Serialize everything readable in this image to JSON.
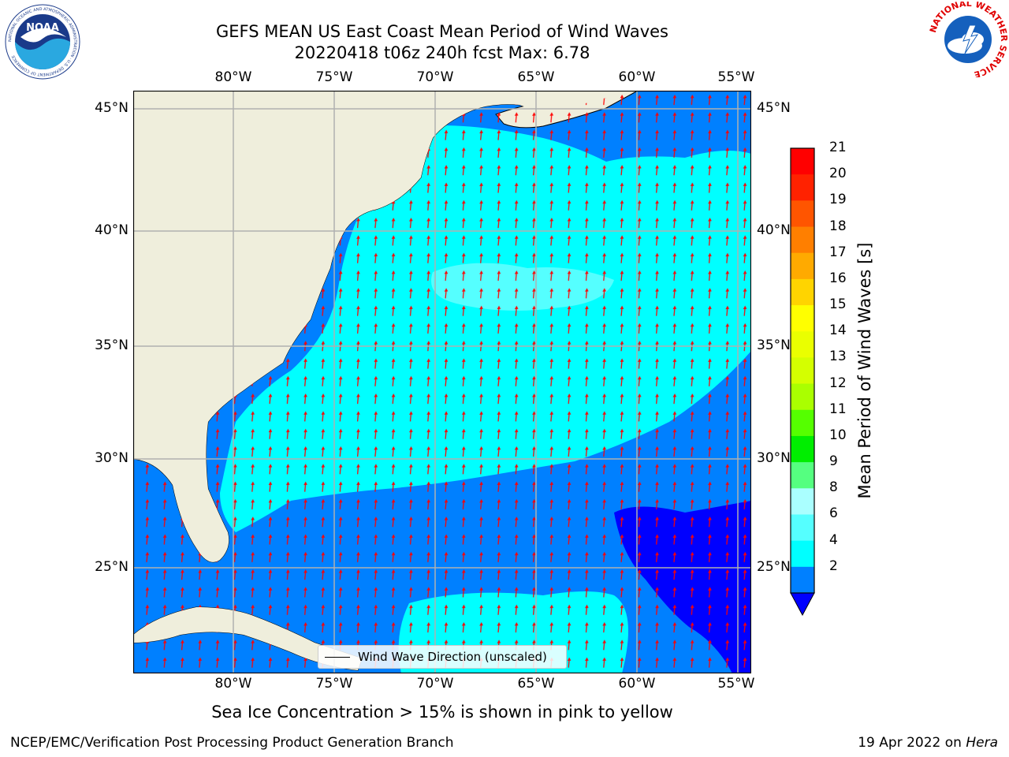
{
  "title_line1": "GEFS MEAN US East Coast Mean Period of Wind Waves",
  "title_line2": "20220418 t06z 240h fcst   Max: 6.78",
  "lon_ticks": [
    "80°W",
    "75°W",
    "70°W",
    "65°W",
    "60°W",
    "55°W"
  ],
  "lat_ticks": [
    "45°N",
    "40°N",
    "35°N",
    "30°N",
    "25°N"
  ],
  "colorbar": {
    "label": "Mean Period of Wind Waves [s]",
    "ticks": [
      "21",
      "20",
      "19",
      "18",
      "17",
      "16",
      "15",
      "14",
      "13",
      "12",
      "11",
      "10",
      "9",
      "8",
      "6",
      "4",
      "2"
    ],
    "colors": [
      "#ff0000",
      "#ff2200",
      "#ff5500",
      "#ff7f00",
      "#ffaa00",
      "#ffd400",
      "#ffff00",
      "#eaff00",
      "#d4ff00",
      "#aaff00",
      "#55ff00",
      "#00ee00",
      "#55ff80",
      "#aaffff",
      "#55ffff",
      "#00ffff",
      "#0080ff"
    ],
    "under_color": "#0000ff"
  },
  "legend_text": "Wind Wave Direction (unscaled)",
  "subtitle": "Sea Ice Concentration > 15% is shown in pink to yellow",
  "footer_left": "NCEP/EMC/Verification Post Processing Product Generation Branch",
  "footer_right_prefix": "19 Apr 2022 on ",
  "footer_right_machine": "Hera",
  "logo_left": {
    "text": "NOAA",
    "ring_text": "NATIONAL OCEANIC AND ATMOSPHERIC ADMINISTRATION · U.S. DEPARTMENT OF COMMERCE"
  },
  "logo_right": {
    "ring_text": "NATIONAL WEATHER SERVICE"
  },
  "colors": {
    "land": "#efeedc",
    "ocean_dark": "#0000ff",
    "ocean_blue": "#0080ff",
    "ocean_cyan": "#00ffff",
    "ocean_light": "#55ffff",
    "arrow": "#ff0000",
    "grid": "#b0b0b0"
  }
}
